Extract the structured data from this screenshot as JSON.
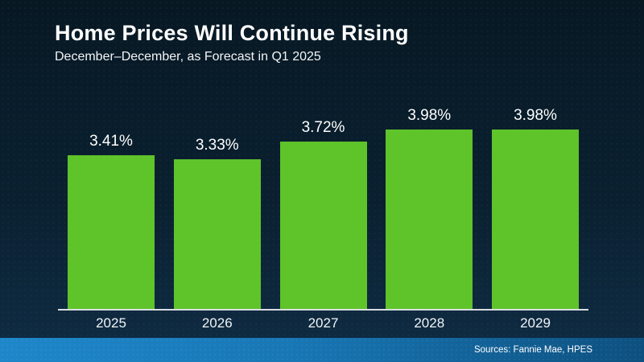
{
  "slide": {
    "title": "Home Prices Will Continue Rising",
    "subtitle": "December–December, as Forecast in Q1 2025",
    "source": "Sources: Fannie Mae, HPES"
  },
  "colors": {
    "bar_fill": "#5fc32a",
    "background_top": "#071823",
    "background_bottom": "#0f2c44",
    "footer_gradient_left": "#1e87ca",
    "footer_gradient_right": "#0d507f",
    "axis_line": "#d8dde2",
    "text": "#ffffff"
  },
  "chart_data": {
    "type": "bar",
    "title": "Home Prices Will Continue Rising",
    "subtitle": "December–December, as Forecast in Q1 2025",
    "categories": [
      "2025",
      "2026",
      "2027",
      "2028",
      "2029"
    ],
    "values": [
      3.41,
      3.33,
      3.72,
      3.98,
      3.98
    ],
    "value_labels": [
      "3.41%",
      "3.33%",
      "3.72%",
      "3.98%",
      "3.98%"
    ],
    "xlabel": "",
    "ylabel": "",
    "ylim": [
      0,
      4.5
    ],
    "grid": false,
    "legend": false,
    "annotations": [
      "Sources: Fannie Mae, HPES"
    ]
  }
}
